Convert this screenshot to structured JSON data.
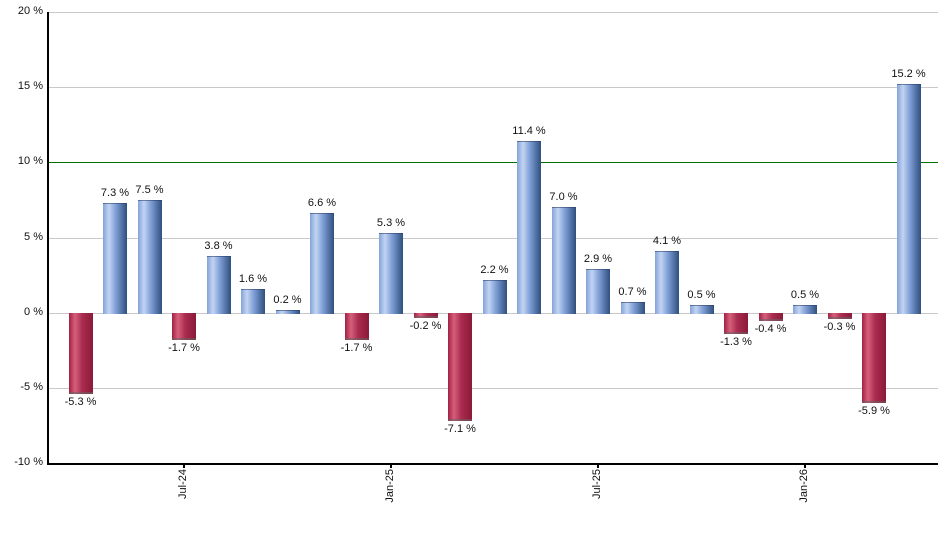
{
  "chart_data": {
    "type": "bar",
    "title": "",
    "xlabel": "",
    "ylabel": "",
    "unit": "%",
    "values": [
      -5.3,
      7.3,
      7.5,
      -1.7,
      3.8,
      1.6,
      0.2,
      6.6,
      -1.7,
      5.3,
      -0.2,
      -7.1,
      2.2,
      11.4,
      7.0,
      2.9,
      0.7,
      4.1,
      0.5,
      -1.3,
      -0.4,
      0.5,
      -0.3,
      -5.9,
      15.2
    ],
    "bar_labels": [
      "-5.3 %",
      "7.3 %",
      "7.5 %",
      "-1.7 %",
      "3.8 %",
      "1.6 %",
      "0.2 %",
      "6.6 %",
      "-1.7 %",
      "5.3 %",
      "-0.2 %",
      "-7.1 %",
      "2.2 %",
      "11.4 %",
      "7.0 %",
      "2.9 %",
      "0.7 %",
      "4.1 %",
      "0.5 %",
      "-1.3 %",
      "-0.4 %",
      "0.5 %",
      "-0.3 %",
      "-5.9 %",
      "15.2 %"
    ],
    "x_ticks": [
      {
        "bar_index": 3,
        "label": "Jul-24"
      },
      {
        "bar_index": 9,
        "label": "Jan-25"
      },
      {
        "bar_index": 15,
        "label": "Jul-25"
      },
      {
        "bar_index": 21,
        "label": "Jan-26"
      }
    ],
    "y_ticks": [
      {
        "value": 20,
        "label": "20 %"
      },
      {
        "value": 15,
        "label": "15 %"
      },
      {
        "value": 10,
        "label": "10 %"
      },
      {
        "value": 5,
        "label": "5 %"
      },
      {
        "value": 0,
        "label": "0 %"
      },
      {
        "value": -5,
        "label": "-5 %"
      },
      {
        "value": -10,
        "label": "-10 %"
      }
    ],
    "ylim": [
      -10,
      20
    ],
    "grid": true,
    "legend": null,
    "reference_line": {
      "value": 10
    }
  },
  "colors": {
    "positive_bar_stops": [
      "#84a3d8",
      "#c2d4f2",
      "#7c9cd4",
      "#2f4f7e"
    ],
    "negative_bar_stops": [
      "#a42045",
      "#d5607b",
      "#aa2c50",
      "#8b1937"
    ],
    "grid": "#c9c9c9",
    "reference_line": "#007000",
    "axis": "#000000",
    "background": "#ffffff",
    "label": "#111111"
  }
}
